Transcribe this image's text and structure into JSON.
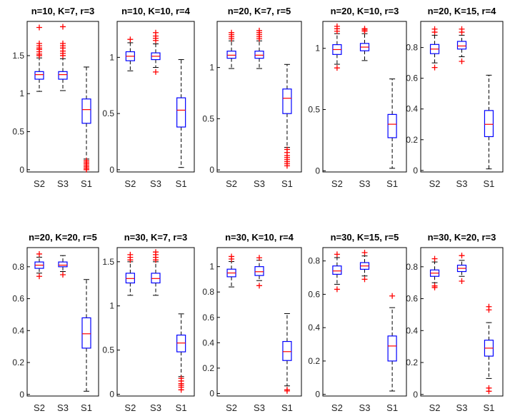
{
  "chart_data": [
    {
      "type": "boxplot",
      "title": "n=10, K=7, r=3",
      "categories": [
        "S2",
        "S3",
        "S1"
      ],
      "ylim": [
        -0.03,
        1.95
      ],
      "yticks": [
        0,
        0.5,
        1,
        1.5
      ],
      "ytick_labels": [
        "0",
        "0.5",
        "1",
        "1.5"
      ],
      "boxes": [
        {
          "name": "S2",
          "whisker_low": 1.03,
          "q1": 1.19,
          "median": 1.25,
          "q3": 1.29,
          "whisker_high": 1.47,
          "outliers": [
            1.5,
            1.52,
            1.55,
            1.58,
            1.6,
            1.63,
            1.66,
            1.87
          ]
        },
        {
          "name": "S3",
          "whisker_low": 1.04,
          "q1": 1.19,
          "median": 1.25,
          "q3": 1.29,
          "whisker_high": 1.46,
          "outliers": [
            1.5,
            1.53,
            1.56,
            1.6,
            1.63,
            1.66,
            1.88
          ]
        },
        {
          "name": "S1",
          "whisker_low": 0.14,
          "q1": 0.61,
          "median": 0.79,
          "q3": 0.93,
          "whisker_high": 1.35,
          "outliers": [
            0.0,
            0.02,
            0.04,
            0.06,
            0.08,
            0.1,
            0.12
          ]
        }
      ]
    },
    {
      "type": "boxplot",
      "title": "n=10, K=10, r=4",
      "categories": [
        "S2",
        "S3",
        "S1"
      ],
      "ylim": [
        -0.02,
        1.32
      ],
      "yticks": [
        0,
        0.5,
        1
      ],
      "ytick_labels": [
        "0",
        "0.5",
        "1"
      ],
      "boxes": [
        {
          "name": "S2",
          "whisker_low": 0.88,
          "q1": 0.97,
          "median": 1.01,
          "q3": 1.05,
          "whisker_high": 1.13,
          "outliers": [
            1.16
          ]
        },
        {
          "name": "S3",
          "whisker_low": 0.91,
          "q1": 0.98,
          "median": 1.01,
          "q3": 1.04,
          "whisker_high": 1.12,
          "outliers": [
            0.87,
            1.15,
            1.17,
            1.19,
            1.22
          ]
        },
        {
          "name": "S1",
          "whisker_low": 0.02,
          "q1": 0.38,
          "median": 0.53,
          "q3": 0.64,
          "whisker_high": 0.98,
          "outliers": []
        }
      ]
    },
    {
      "type": "boxplot",
      "title": "n=20, K=7, r=5",
      "categories": [
        "S2",
        "S3",
        "S1"
      ],
      "ylim": [
        -0.02,
        1.45
      ],
      "yticks": [
        0,
        0.5,
        1
      ],
      "ytick_labels": [
        "0",
        "0.5",
        "1"
      ],
      "boxes": [
        {
          "name": "S2",
          "whisker_low": 0.99,
          "q1": 1.09,
          "median": 1.12,
          "q3": 1.16,
          "whisker_high": 1.26,
          "outliers": [
            1.28,
            1.3,
            1.32,
            1.34
          ]
        },
        {
          "name": "S3",
          "whisker_low": 0.99,
          "q1": 1.09,
          "median": 1.12,
          "q3": 1.16,
          "whisker_high": 1.26,
          "outliers": [
            1.28,
            1.3,
            1.32,
            1.34,
            1.36
          ]
        },
        {
          "name": "S1",
          "whisker_low": 0.22,
          "q1": 0.55,
          "median": 0.7,
          "q3": 0.79,
          "whisker_high": 1.03,
          "outliers": [
            0.04,
            0.06,
            0.08,
            0.1,
            0.12,
            0.14,
            0.17,
            0.2
          ]
        }
      ]
    },
    {
      "type": "boxplot",
      "title": "n=20, K=10, r=3",
      "categories": [
        "S2",
        "S3",
        "S1"
      ],
      "ylim": [
        -0.01,
        1.22
      ],
      "yticks": [
        0,
        0.5,
        1
      ],
      "ytick_labels": [
        "0",
        "0.5",
        "1"
      ],
      "boxes": [
        {
          "name": "S2",
          "whisker_low": 0.87,
          "q1": 0.95,
          "median": 0.99,
          "q3": 1.03,
          "whisker_high": 1.12,
          "outliers": [
            0.84,
            1.14,
            1.16,
            1.18
          ]
        },
        {
          "name": "S3",
          "whisker_low": 0.9,
          "q1": 0.98,
          "median": 1.01,
          "q3": 1.04,
          "whisker_high": 1.12,
          "outliers": [
            1.14,
            1.15,
            1.16
          ]
        },
        {
          "name": "S1",
          "whisker_low": 0.02,
          "q1": 0.27,
          "median": 0.38,
          "q3": 0.46,
          "whisker_high": 0.75,
          "outliers": []
        }
      ]
    },
    {
      "type": "boxplot",
      "title": "n=20, K=15, r=4",
      "categories": [
        "S2",
        "S3",
        "S1"
      ],
      "ylim": [
        -0.01,
        0.97
      ],
      "yticks": [
        0,
        0.2,
        0.4,
        0.6,
        0.8
      ],
      "ytick_labels": [
        "0",
        "0.2",
        "0.4",
        "0.6",
        "0.8"
      ],
      "boxes": [
        {
          "name": "S2",
          "whisker_low": 0.7,
          "q1": 0.76,
          "median": 0.79,
          "q3": 0.82,
          "whisker_high": 0.88,
          "outliers": [
            0.67,
            0.9,
            0.92
          ]
        },
        {
          "name": "S3",
          "whisker_low": 0.74,
          "q1": 0.79,
          "median": 0.81,
          "q3": 0.84,
          "whisker_high": 0.88,
          "outliers": [
            0.71,
            0.9,
            0.92
          ]
        },
        {
          "name": "S1",
          "whisker_low": 0.01,
          "q1": 0.22,
          "median": 0.3,
          "q3": 0.39,
          "whisker_high": 0.62,
          "outliers": []
        }
      ]
    },
    {
      "type": "boxplot",
      "title": "n=20, K=20, r=5",
      "categories": [
        "S2",
        "S3",
        "S1"
      ],
      "ylim": [
        -0.01,
        0.92
      ],
      "yticks": [
        0,
        0.2,
        0.4,
        0.6,
        0.8
      ],
      "ytick_labels": [
        "0",
        "0.2",
        "0.4",
        "0.6",
        "0.8"
      ],
      "boxes": [
        {
          "name": "S2",
          "whisker_low": 0.76,
          "q1": 0.79,
          "median": 0.81,
          "q3": 0.83,
          "whisker_high": 0.86,
          "outliers": [
            0.74,
            0.88
          ]
        },
        {
          "name": "S3",
          "whisker_low": 0.77,
          "q1": 0.8,
          "median": 0.81,
          "q3": 0.83,
          "whisker_high": 0.87,
          "outliers": [
            0.75
          ]
        },
        {
          "name": "S1",
          "whisker_low": 0.02,
          "q1": 0.29,
          "median": 0.38,
          "q3": 0.48,
          "whisker_high": 0.72,
          "outliers": []
        }
      ]
    },
    {
      "type": "boxplot",
      "title": "n=30, K=7, r=3",
      "categories": [
        "S2",
        "S3",
        "S1"
      ],
      "ylim": [
        -0.02,
        1.66
      ],
      "yticks": [
        0,
        0.5,
        1,
        1.5
      ],
      "ytick_labels": [
        "0",
        "0.5",
        "1",
        "1.5"
      ],
      "boxes": [
        {
          "name": "S2",
          "whisker_low": 1.12,
          "q1": 1.26,
          "median": 1.31,
          "q3": 1.37,
          "whisker_high": 1.5,
          "outliers": [
            1.52,
            1.55,
            1.58
          ]
        },
        {
          "name": "S3",
          "whisker_low": 1.12,
          "q1": 1.26,
          "median": 1.31,
          "q3": 1.37,
          "whisker_high": 1.5,
          "outliers": [
            1.52,
            1.55,
            1.58,
            1.61
          ]
        },
        {
          "name": "S1",
          "whisker_low": 0.2,
          "q1": 0.48,
          "median": 0.58,
          "q3": 0.67,
          "whisker_high": 0.91,
          "outliers": [
            0.05,
            0.08,
            0.1,
            0.12,
            0.15,
            0.18
          ]
        }
      ]
    },
    {
      "type": "boxplot",
      "title": "n=30, K=10, r=4",
      "categories": [
        "S2",
        "S3",
        "S1"
      ],
      "ylim": [
        -0.02,
        1.15
      ],
      "yticks": [
        0,
        0.2,
        0.4,
        0.6,
        0.8,
        1
      ],
      "ytick_labels": [
        "0",
        "0.2",
        "0.4",
        "0.6",
        "0.8",
        "1"
      ],
      "boxes": [
        {
          "name": "S2",
          "whisker_low": 0.84,
          "q1": 0.92,
          "median": 0.95,
          "q3": 0.98,
          "whisker_high": 1.04,
          "outliers": [
            1.06,
            1.08
          ]
        },
        {
          "name": "S3",
          "whisker_low": 0.89,
          "q1": 0.93,
          "median": 0.96,
          "q3": 1.0,
          "whisker_high": 1.05,
          "outliers": [
            0.85,
            1.07
          ]
        },
        {
          "name": "S1",
          "whisker_low": 0.06,
          "q1": 0.26,
          "median": 0.33,
          "q3": 0.41,
          "whisker_high": 0.63,
          "outliers": [
            0.02,
            0.03
          ]
        }
      ]
    },
    {
      "type": "boxplot",
      "title": "n=30, K=15, r=5",
      "categories": [
        "S2",
        "S3",
        "S1"
      ],
      "ylim": [
        -0.01,
        0.88
      ],
      "yticks": [
        0,
        0.2,
        0.4,
        0.6,
        0.8
      ],
      "ytick_labels": [
        "0",
        "0.2",
        "0.4",
        "0.6",
        "0.8"
      ],
      "boxes": [
        {
          "name": "S2",
          "whisker_low": 0.66,
          "q1": 0.72,
          "median": 0.74,
          "q3": 0.77,
          "whisker_high": 0.82,
          "outliers": [
            0.63,
            0.84
          ]
        },
        {
          "name": "S3",
          "whisker_low": 0.71,
          "q1": 0.75,
          "median": 0.77,
          "q3": 0.79,
          "whisker_high": 0.83,
          "outliers": [
            0.69,
            0.85
          ]
        },
        {
          "name": "S1",
          "whisker_low": 0.02,
          "q1": 0.2,
          "median": 0.29,
          "q3": 0.35,
          "whisker_high": 0.52,
          "outliers": [
            0.59
          ]
        }
      ]
    },
    {
      "type": "boxplot",
      "title": "n=30, K=20, r=3",
      "categories": [
        "S2",
        "S3",
        "S1"
      ],
      "ylim": [
        -0.01,
        0.92
      ],
      "yticks": [
        0,
        0.2,
        0.4,
        0.6,
        0.8
      ],
      "ytick_labels": [
        "0",
        "0.2",
        "0.4",
        "0.6",
        "0.8"
      ],
      "boxes": [
        {
          "name": "S2",
          "whisker_low": 0.7,
          "q1": 0.74,
          "median": 0.76,
          "q3": 0.78,
          "whisker_high": 0.83,
          "outliers": [
            0.67,
            0.68,
            0.85
          ]
        },
        {
          "name": "S3",
          "whisker_low": 0.74,
          "q1": 0.77,
          "median": 0.79,
          "q3": 0.81,
          "whisker_high": 0.84,
          "outliers": [
            0.71,
            0.87
          ]
        },
        {
          "name": "S1",
          "whisker_low": 0.1,
          "q1": 0.24,
          "median": 0.29,
          "q3": 0.34,
          "whisker_high": 0.45,
          "outliers": [
            0.02,
            0.04,
            0.53,
            0.55
          ]
        }
      ]
    }
  ],
  "colors": {
    "box": "#0000ff",
    "median": "#ff0000",
    "outlier": "#ff0000",
    "whisker": "#000000",
    "axis": "#000000"
  }
}
